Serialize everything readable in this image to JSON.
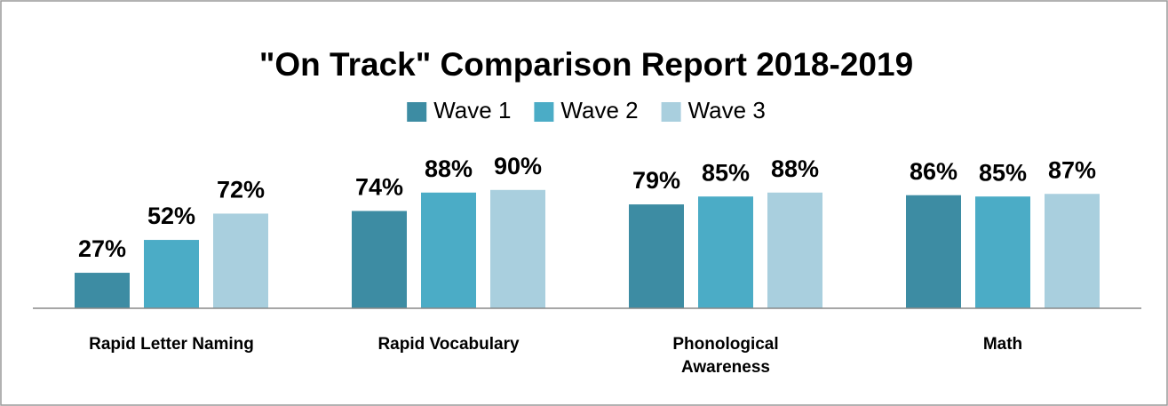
{
  "chart_data": {
    "type": "bar",
    "title": "\"On Track\" Comparison Report 2018-2019",
    "categories": [
      "Rapid Letter Naming",
      "Rapid Vocabulary",
      "Phonological Awareness",
      "Math"
    ],
    "series": [
      {
        "name": "Wave 1",
        "color": "#3d8ca3",
        "values": [
          27,
          74,
          79,
          86
        ],
        "value_labels": [
          "27%",
          "74%",
          "79%",
          "86%"
        ]
      },
      {
        "name": "Wave 2",
        "color": "#4bacc6",
        "values": [
          52,
          88,
          85,
          85
        ],
        "value_labels": [
          "52%",
          "88%",
          "85%",
          "85%"
        ]
      },
      {
        "name": "Wave 3",
        "color": "#a9cfde",
        "values": [
          72,
          90,
          88,
          87
        ],
        "value_labels": [
          "72%",
          "90%",
          "88%",
          "87%"
        ]
      }
    ],
    "ylim": [
      0,
      100
    ],
    "legend": "top"
  }
}
